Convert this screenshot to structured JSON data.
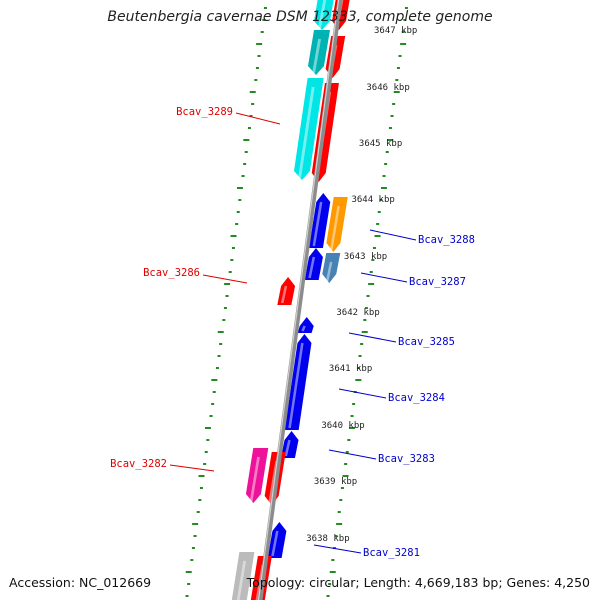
{
  "title": "Beutenbergia cavernae DSM 12333, complete genome",
  "footer": {
    "accession": "Accession: NC_012669",
    "summary": "Topology: circular; Length: 4,669,183 bp; Genes: 4,250"
  },
  "colors": {
    "backbone": "#8c8c8c",
    "tick": "#228B22",
    "label_red": "#dd0000",
    "label_blue": "#0000cc",
    "red": "#ff0000",
    "cyan": "#00e5e5",
    "teal": "#00b3b3",
    "blue": "#0000ee",
    "orange": "#ff9900",
    "steel": "#4682b4",
    "magenta": "#ee1199",
    "gray": "#bbbbbb"
  },
  "ticks": [
    "3647 kbp",
    "3646 kbp",
    "3645 kbp",
    "3644 kbp",
    "3643 kbp",
    "3642 kbp",
    "3641 kbp",
    "3640 kbp",
    "3639 kbp",
    "3638 kbp"
  ],
  "gene_labels": [
    {
      "name": "Bcav_3289",
      "side": "left"
    },
    {
      "name": "Bcav_3288",
      "side": "right"
    },
    {
      "name": "Bcav_3287",
      "side": "right"
    },
    {
      "name": "Bcav_3286",
      "side": "left"
    },
    {
      "name": "Bcav_3285",
      "side": "right"
    },
    {
      "name": "Bcav_3284",
      "side": "right"
    },
    {
      "name": "Bcav_3283",
      "side": "right"
    },
    {
      "name": "Bcav_3282",
      "side": "left"
    },
    {
      "name": "Bcav_3281",
      "side": "right"
    }
  ]
}
